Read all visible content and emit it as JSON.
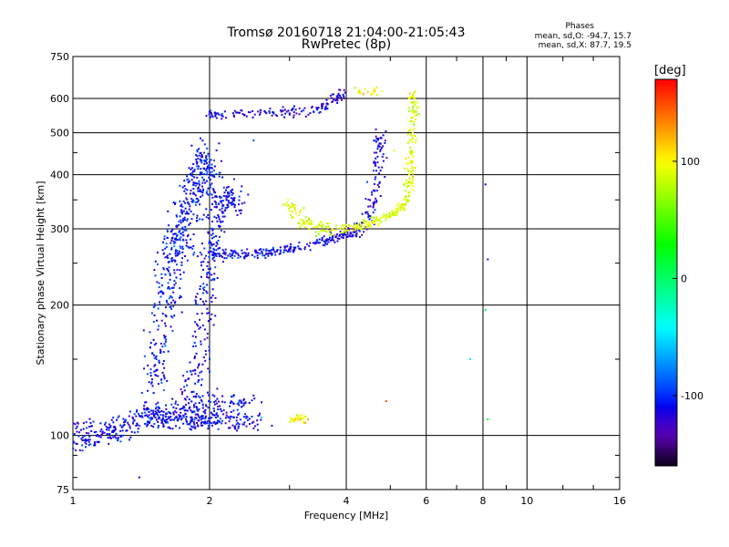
{
  "header": {
    "title_line1": "Tromsø 20160718 21:04:00-21:05:43",
    "title_line2": "RwPretec (8p)",
    "phase_title": "Phases",
    "phase_line1": "mean, sd,O: -94.7, 15.7",
    "phase_line2": "mean, sd,X:  87.7, 19.5"
  },
  "colorbar": {
    "unit": "[deg]",
    "ticks": [
      "100",
      "0",
      "-100"
    ],
    "tick_values": [
      100,
      0,
      -100
    ],
    "range": [
      -160,
      170
    ]
  },
  "chart_data": {
    "type": "scatter",
    "xlabel": "Frequency [MHz]",
    "ylabel": "Stationary phase Virtual Height [km]",
    "xscale": "log",
    "yscale": "log",
    "xlim": [
      1,
      16
    ],
    "ylim": [
      75,
      750
    ],
    "xticks": [
      1,
      2,
      4,
      6,
      8,
      10,
      16
    ],
    "xtick_labels": [
      "1",
      "2",
      "4",
      "6",
      "8",
      "10",
      "16"
    ],
    "yticks": [
      75,
      100,
      200,
      300,
      400,
      500,
      600,
      750
    ],
    "ytick_labels": [
      "75",
      "100",
      "200",
      "300",
      "400",
      "500",
      "600",
      "750"
    ],
    "grid": true,
    "traces": [
      {
        "phase": -110,
        "spread": [
          0.06,
          0.06
        ],
        "pts": [
          [
            1.0,
            104
          ],
          [
            1.1,
            101
          ],
          [
            1.2,
            103
          ],
          [
            1.3,
            106
          ],
          [
            1.4,
            108
          ],
          [
            1.5,
            112
          ],
          [
            1.6,
            114
          ],
          [
            1.8,
            117
          ],
          [
            2.0,
            118
          ],
          [
            2.2,
            116
          ],
          [
            2.4,
            117
          ]
        ],
        "n": 300
      },
      {
        "phase": -110,
        "spread": [
          0.05,
          0.04
        ],
        "pts": [
          [
            1.5,
            108
          ],
          [
            1.6,
            109
          ],
          [
            1.7,
            108
          ],
          [
            1.8,
            108
          ],
          [
            1.9,
            108
          ],
          [
            2.0,
            108
          ],
          [
            2.2,
            108
          ],
          [
            2.4,
            108
          ],
          [
            2.6,
            109
          ]
        ],
        "n": 200
      },
      {
        "phase": -110,
        "spread": [
          0.04,
          0.04
        ],
        "pts": [
          [
            1.02,
            95
          ],
          [
            1.1,
            98
          ],
          [
            1.2,
            100
          ],
          [
            1.3,
            104
          ]
        ],
        "n": 60
      },
      {
        "phase": -105,
        "spread": [
          0.06,
          0.1
        ],
        "pts": [
          [
            1.5,
            130
          ],
          [
            1.55,
            160
          ],
          [
            1.6,
            200
          ],
          [
            1.65,
            240
          ],
          [
            1.7,
            280
          ],
          [
            1.75,
            300
          ],
          [
            1.8,
            330
          ],
          [
            1.85,
            360
          ],
          [
            1.9,
            390
          ],
          [
            1.95,
            420
          ],
          [
            2.0,
            430
          ]
        ],
        "n": 500
      },
      {
        "phase": -110,
        "spread": [
          0.05,
          0.06
        ],
        "pts": [
          [
            1.8,
            120
          ],
          [
            1.9,
            150
          ],
          [
            1.95,
            200
          ],
          [
            2.0,
            250
          ],
          [
            2.05,
            300
          ],
          [
            2.1,
            340
          ],
          [
            2.2,
            360
          ],
          [
            2.3,
            340
          ]
        ],
        "n": 300
      },
      {
        "phase": -110,
        "spread": [
          0.03,
          0.02
        ],
        "pts": [
          [
            2.0,
            262
          ],
          [
            2.2,
            262
          ],
          [
            2.5,
            263
          ],
          [
            2.8,
            266
          ],
          [
            3.0,
            270
          ],
          [
            3.3,
            275
          ],
          [
            3.6,
            280
          ],
          [
            3.9,
            288
          ],
          [
            4.2,
            292
          ]
        ],
        "n": 200
      },
      {
        "phase": -115,
        "spread": [
          0.03,
          0.03
        ],
        "pts": [
          [
            3.5,
            285
          ],
          [
            4.0,
            292
          ],
          [
            4.3,
            300
          ],
          [
            4.5,
            320
          ],
          [
            4.6,
            350
          ],
          [
            4.7,
            400
          ],
          [
            4.75,
            450
          ],
          [
            4.8,
            500
          ]
        ],
        "n": 150
      },
      {
        "phase": -115,
        "spread": [
          0.03,
          0.02
        ],
        "pts": [
          [
            2.0,
            545
          ],
          [
            2.1,
            550
          ],
          [
            2.3,
            555
          ],
          [
            2.6,
            557
          ],
          [
            2.9,
            556
          ],
          [
            3.1,
            557
          ],
          [
            3.4,
            565
          ],
          [
            3.6,
            580
          ],
          [
            3.8,
            600
          ],
          [
            4.0,
            615
          ]
        ],
        "n": 150
      },
      {
        "phase": 90,
        "spread": [
          0.025,
          0.04
        ],
        "pts": [
          [
            3.0,
            345
          ],
          [
            3.1,
            322
          ],
          [
            3.3,
            305
          ],
          [
            3.6,
            300
          ],
          [
            3.9,
            300
          ]
        ],
        "n": 100
      },
      {
        "phase": 90,
        "spread": [
          0.02,
          0.02
        ],
        "pts": [
          [
            4.0,
            300
          ],
          [
            4.3,
            305
          ],
          [
            4.6,
            310
          ],
          [
            4.9,
            320
          ],
          [
            5.2,
            330
          ],
          [
            5.4,
            345
          ],
          [
            5.5,
            380
          ],
          [
            5.55,
            430
          ],
          [
            5.6,
            480
          ],
          [
            5.6,
            530
          ],
          [
            5.65,
            580
          ],
          [
            5.6,
            620
          ]
        ],
        "n": 250
      },
      {
        "phase": 100,
        "spread": [
          0.02,
          0.02
        ],
        "pts": [
          [
            4.2,
            630
          ],
          [
            4.4,
            620
          ],
          [
            4.6,
            620
          ],
          [
            4.8,
            620
          ]
        ],
        "n": 20
      },
      {
        "phase": 100,
        "spread": [
          0.015,
          0.02
        ],
        "pts": [
          [
            3.0,
            108
          ],
          [
            3.1,
            110
          ],
          [
            3.2,
            109
          ],
          [
            3.3,
            109
          ]
        ],
        "n": 30
      }
    ],
    "singles": [
      [
        8.1,
        380,
        -110
      ],
      [
        8.2,
        255,
        -120
      ],
      [
        8.1,
        195,
        10
      ],
      [
        7.5,
        150,
        -50
      ],
      [
        8.2,
        109,
        20
      ],
      [
        4.9,
        120,
        150
      ],
      [
        5.1,
        455,
        90
      ],
      [
        2.5,
        480,
        -90
      ],
      [
        1.4,
        80,
        -110
      ],
      [
        2.6,
        110,
        -50
      ]
    ]
  }
}
